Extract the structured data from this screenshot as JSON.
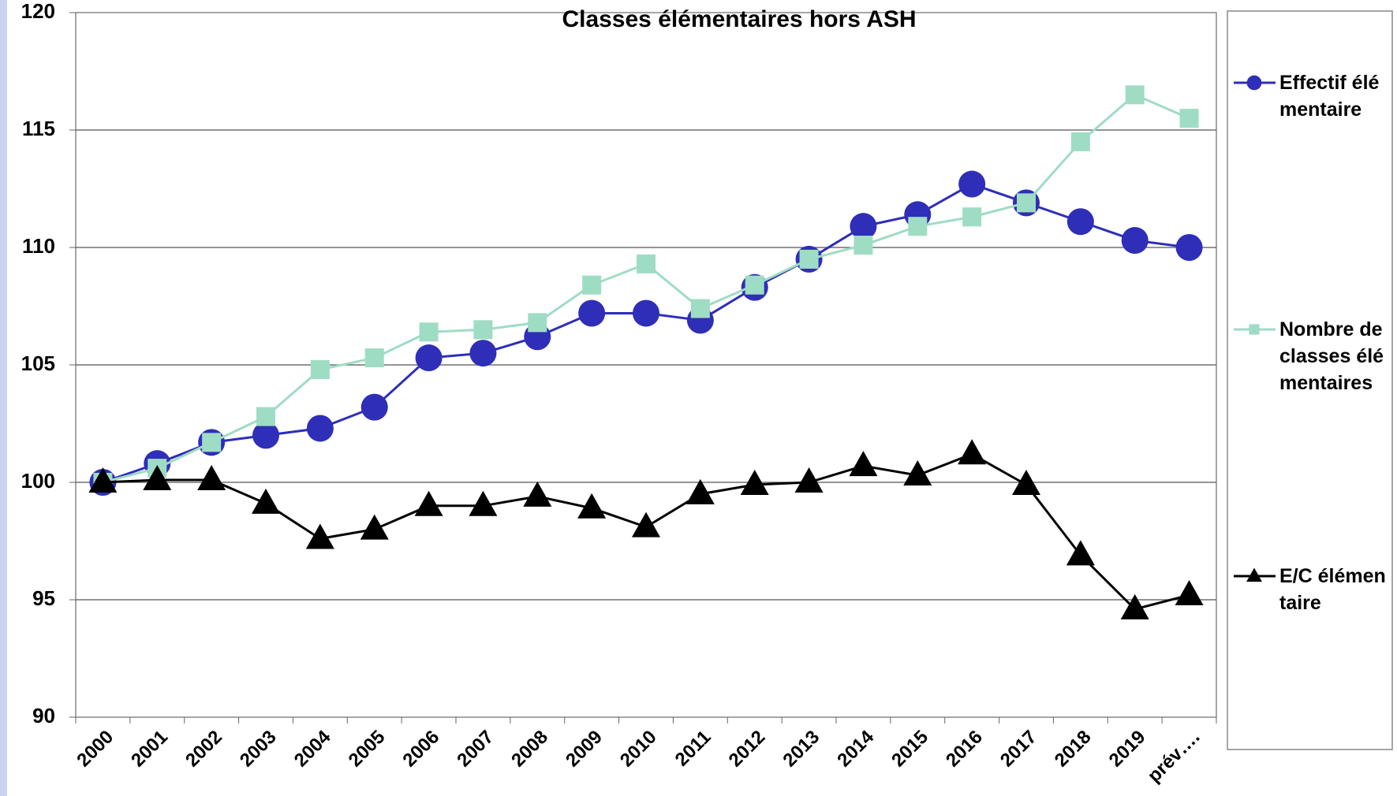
{
  "chart_data": {
    "type": "line",
    "title": "Classes élémentaires hors ASH",
    "categories": [
      "2000",
      "2001",
      "2002",
      "2003",
      "2004",
      "2005",
      "2006",
      "2007",
      "2008",
      "2009",
      "2010",
      "2011",
      "2012",
      "2013",
      "2014",
      "2015",
      "2016",
      "2017",
      "2018",
      "2019",
      "prév…."
    ],
    "series": [
      {
        "name": "Effectif élémentaire",
        "color": "#2e2eb8",
        "marker": "circle",
        "values": [
          100,
          100.8,
          101.7,
          102.0,
          102.3,
          103.2,
          105.3,
          105.5,
          106.2,
          107.2,
          107.2,
          106.9,
          108.3,
          109.5,
          110.9,
          111.4,
          112.7,
          111.9,
          111.1,
          110.3,
          110.0
        ]
      },
      {
        "name": "Nombre de classes élémentaires",
        "color": "#9fdcc4",
        "marker": "square",
        "values": [
          100,
          100.6,
          101.7,
          102.8,
          104.8,
          105.3,
          106.4,
          106.5,
          106.8,
          108.4,
          109.3,
          107.4,
          108.4,
          109.5,
          110.1,
          110.9,
          111.3,
          111.9,
          114.5,
          116.5,
          115.5
        ]
      },
      {
        "name": "E/C élémentaire",
        "color": "#000000",
        "marker": "triangle",
        "values": [
          100,
          100.1,
          100.1,
          99.1,
          97.6,
          98.0,
          99.0,
          99.0,
          99.4,
          98.9,
          98.1,
          99.5,
          99.9,
          100.0,
          100.7,
          100.3,
          101.2,
          99.9,
          96.9,
          94.6,
          95.2
        ]
      }
    ],
    "ylim": [
      90,
      120
    ],
    "yticks": [
      90,
      95,
      100,
      105,
      110,
      115,
      120
    ],
    "grid": true,
    "legend": "right"
  }
}
